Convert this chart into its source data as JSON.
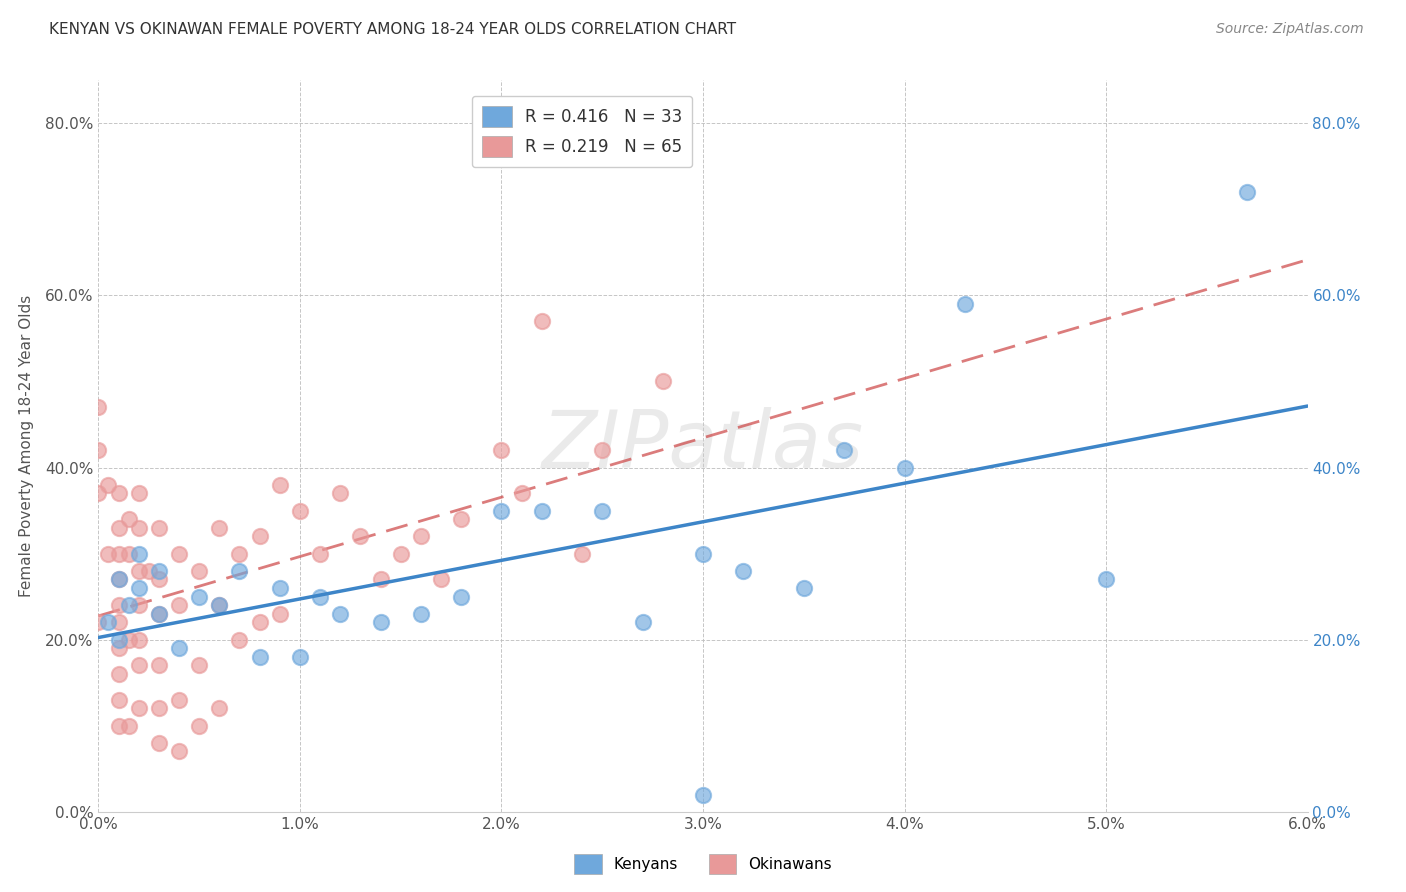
{
  "title": "KENYAN VS OKINAWAN FEMALE POVERTY AMONG 18-24 YEAR OLDS CORRELATION CHART",
  "source": "Source: ZipAtlas.com",
  "ylabel": "Female Poverty Among 18-24 Year Olds",
  "xlim": [
    0.0,
    0.06
  ],
  "ylim": [
    0.0,
    0.85
  ],
  "xticks": [
    0.0,
    0.01,
    0.02,
    0.03,
    0.04,
    0.05,
    0.06
  ],
  "yticks": [
    0.0,
    0.2,
    0.4,
    0.6,
    0.8
  ],
  "kenyan_color": "#6fa8dc",
  "okinawan_color": "#e89999",
  "kenyan_line_color": "#3d85c8",
  "okinawan_line_color": "#cc4444",
  "kenyan_x": [
    0.0005,
    0.001,
    0.001,
    0.0015,
    0.002,
    0.002,
    0.003,
    0.003,
    0.004,
    0.005,
    0.006,
    0.007,
    0.008,
    0.009,
    0.01,
    0.011,
    0.012,
    0.014,
    0.016,
    0.018,
    0.02,
    0.022,
    0.025,
    0.027,
    0.03,
    0.032,
    0.035,
    0.037,
    0.04,
    0.043,
    0.05,
    0.057,
    0.03
  ],
  "kenyan_y": [
    0.22,
    0.2,
    0.27,
    0.24,
    0.26,
    0.3,
    0.23,
    0.28,
    0.19,
    0.25,
    0.24,
    0.28,
    0.18,
    0.26,
    0.18,
    0.25,
    0.23,
    0.22,
    0.23,
    0.25,
    0.35,
    0.35,
    0.35,
    0.22,
    0.3,
    0.28,
    0.26,
    0.42,
    0.4,
    0.59,
    0.27,
    0.72,
    0.02
  ],
  "okinawan_x": [
    0.0,
    0.0,
    0.0,
    0.0,
    0.0005,
    0.0005,
    0.001,
    0.001,
    0.001,
    0.001,
    0.001,
    0.001,
    0.001,
    0.001,
    0.001,
    0.001,
    0.0015,
    0.0015,
    0.0015,
    0.0015,
    0.002,
    0.002,
    0.002,
    0.002,
    0.002,
    0.002,
    0.002,
    0.0025,
    0.003,
    0.003,
    0.003,
    0.003,
    0.003,
    0.003,
    0.004,
    0.004,
    0.004,
    0.004,
    0.005,
    0.005,
    0.005,
    0.006,
    0.006,
    0.006,
    0.007,
    0.007,
    0.008,
    0.008,
    0.009,
    0.009,
    0.01,
    0.011,
    0.012,
    0.013,
    0.014,
    0.015,
    0.016,
    0.017,
    0.018,
    0.02,
    0.021,
    0.022,
    0.024,
    0.025,
    0.028
  ],
  "okinawan_y": [
    0.47,
    0.42,
    0.37,
    0.22,
    0.38,
    0.3,
    0.37,
    0.33,
    0.3,
    0.27,
    0.24,
    0.22,
    0.19,
    0.16,
    0.13,
    0.1,
    0.34,
    0.3,
    0.2,
    0.1,
    0.37,
    0.33,
    0.28,
    0.24,
    0.2,
    0.17,
    0.12,
    0.28,
    0.33,
    0.27,
    0.23,
    0.17,
    0.12,
    0.08,
    0.3,
    0.24,
    0.13,
    0.07,
    0.28,
    0.17,
    0.1,
    0.33,
    0.24,
    0.12,
    0.3,
    0.2,
    0.32,
    0.22,
    0.38,
    0.23,
    0.35,
    0.3,
    0.37,
    0.32,
    0.27,
    0.3,
    0.32,
    0.27,
    0.34,
    0.42,
    0.37,
    0.57,
    0.3,
    0.42,
    0.5
  ]
}
